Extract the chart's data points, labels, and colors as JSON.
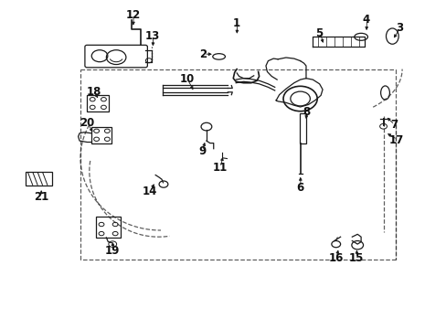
{
  "bg_color": "#ffffff",
  "line_color": "#1a1a1a",
  "figsize": [
    4.89,
    3.6
  ],
  "dpi": 100,
  "label_positions": {
    "1": [
      0.53,
      0.93,
      0.53,
      0.89
    ],
    "2": [
      0.455,
      0.835,
      0.48,
      0.835
    ],
    "3": [
      0.895,
      0.915,
      0.878,
      0.878
    ],
    "4": [
      0.82,
      0.94,
      0.82,
      0.9
    ],
    "5": [
      0.715,
      0.9,
      0.725,
      0.862
    ],
    "6": [
      0.672,
      0.43,
      0.672,
      0.47
    ],
    "7": [
      0.882,
      0.62,
      0.862,
      0.648
    ],
    "8": [
      0.685,
      0.66,
      0.685,
      0.63
    ],
    "9": [
      0.452,
      0.54,
      0.46,
      0.575
    ],
    "10": [
      0.418,
      0.76,
      0.435,
      0.72
    ],
    "11": [
      0.492,
      0.49,
      0.5,
      0.53
    ],
    "12": [
      0.298,
      0.955,
      0.298,
      0.915
    ],
    "13": [
      0.342,
      0.89,
      0.342,
      0.852
    ],
    "14": [
      0.335,
      0.418,
      0.348,
      0.448
    ],
    "15": [
      0.798,
      0.215,
      0.798,
      0.248
    ],
    "16": [
      0.752,
      0.215,
      0.758,
      0.248
    ],
    "17": [
      0.888,
      0.575,
      0.862,
      0.598
    ],
    "18": [
      0.21,
      0.72,
      0.222,
      0.695
    ],
    "19": [
      0.252,
      0.238,
      0.252,
      0.272
    ],
    "20": [
      0.195,
      0.625,
      0.21,
      0.592
    ],
    "21": [
      0.092,
      0.402,
      0.092,
      0.43
    ]
  }
}
